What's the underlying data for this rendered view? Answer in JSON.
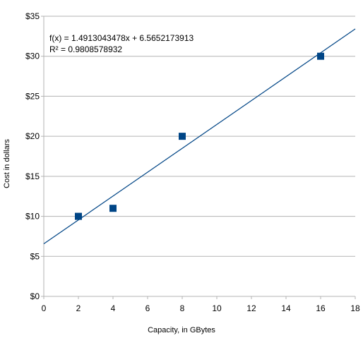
{
  "chart_data": {
    "type": "scatter",
    "title": "",
    "xlabel": "Capacity, in GBytes",
    "ylabel": "Cost in dollars",
    "xlim": [
      0,
      18
    ],
    "ylim": [
      0,
      35
    ],
    "x_ticks": [
      "0",
      "2",
      "4",
      "6",
      "8",
      "10",
      "12",
      "14",
      "16",
      "18"
    ],
    "y_ticks": [
      "$0",
      "$5",
      "$10",
      "$15",
      "$20",
      "$25",
      "$30",
      "$35"
    ],
    "grid": true,
    "legend": "none",
    "series": [
      {
        "x": [
          2,
          4,
          8,
          16
        ],
        "y": [
          10,
          11,
          20,
          30
        ],
        "marker": "square",
        "color": "#004586"
      }
    ],
    "trendline": {
      "type": "linear",
      "slope": 1.4913043478,
      "intercept": 6.5652173913,
      "color": "#004586"
    },
    "annotations": [
      "f(x) = 1.4913043478x + 6.5652173913",
      "R² = 0.9808578932"
    ],
    "colors": {
      "grid": "#b3b3b3",
      "axis": "#b3b3b3",
      "marker": "#004586",
      "line": "#004586"
    }
  }
}
